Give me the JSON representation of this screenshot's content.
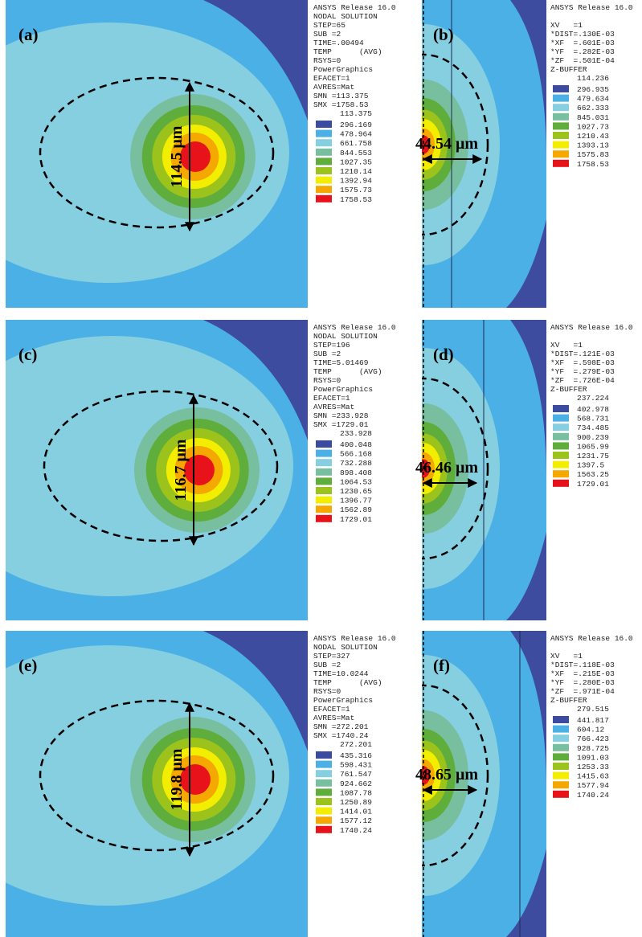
{
  "panels": [
    {
      "label": "(a)",
      "dimension": "114.5 μm",
      "info": [
        "ANSYS Release 16.0",
        "NODAL SOLUTION",
        "STEP=65",
        "SUB =2",
        "TIME=.00494",
        "TEMP      (AVG)",
        "RSYS=0",
        "PowerGraphics",
        "EFACET=1",
        "AVRES=Mat",
        "SMN =113.375",
        "SMX =1758.53"
      ],
      "legend": [
        "113.375",
        "296.169",
        "478.964",
        "661.758",
        "844.553",
        "1027.35",
        "1210.14",
        "1392.94",
        "1575.73",
        "1758.53"
      ]
    },
    {
      "label": "(b)",
      "dimension": "44.54 μm",
      "info": [
        "ANSYS Release 16.0",
        "XV   =1",
        "*DIST=.130E-03",
        "*XF  =.601E-03",
        "*YF  =.282E-03",
        "*ZF  =.501E-04",
        "Z-BUFFER"
      ],
      "legend": [
        "114.236",
        "296.935",
        "479.634",
        "662.333",
        "845.031",
        "1027.73",
        "1210.43",
        "1393.13",
        "1575.83",
        "1758.53"
      ]
    },
    {
      "label": "(c)",
      "dimension": "116.7 μm",
      "info": [
        "ANSYS Release 16.0",
        "NODAL SOLUTION",
        "STEP=196",
        "SUB =2",
        "TIME=5.01469",
        "TEMP      (AVG)",
        "RSYS=0",
        "PowerGraphics",
        "EFACET=1",
        "AVRES=Mat",
        "SMN =233.928",
        "SMX =1729.01"
      ],
      "legend": [
        "233.928",
        "400.048",
        "566.168",
        "732.288",
        "898.408",
        "1064.53",
        "1230.65",
        "1396.77",
        "1562.89",
        "1729.01"
      ]
    },
    {
      "label": "(d)",
      "dimension": "46.46 μm",
      "info": [
        "ANSYS Release 16.0",
        "XV   =1",
        "*DIST=.121E-03",
        "*XF  =.598E-03",
        "*YF  =.279E-03",
        "*ZF  =.726E-04",
        "Z-BUFFER"
      ],
      "legend": [
        "237.224",
        "402.978",
        "568.731",
        "734.485",
        "900.239",
        "1065.99",
        "1231.75",
        "1397.5",
        "1563.25",
        "1729.01"
      ]
    },
    {
      "label": "(e)",
      "dimension": "119.8 μm",
      "info": [
        "ANSYS Release 16.0",
        "NODAL SOLUTION",
        "STEP=327",
        "SUB =2",
        "TIME=10.0244",
        "TEMP      (AVG)",
        "RSYS=0",
        "PowerGraphics",
        "EFACET=1",
        "AVRES=Mat",
        "SMN =272.201",
        "SMX =1740.24"
      ],
      "legend": [
        "272.201",
        "435.316",
        "598.431",
        "761.547",
        "924.662",
        "1087.78",
        "1250.89",
        "1414.01",
        "1577.12",
        "1740.24"
      ]
    },
    {
      "label": "(f)",
      "dimension": "48.65 μm",
      "info": [
        "ANSYS Release 16.0",
        "XV   =1",
        "*DIST=.118E-03",
        "*XF  =.215E-03",
        "*YF  =.280E-03",
        "*ZF  =.971E-04",
        "Z-BUFFER"
      ],
      "legend": [
        "279.515",
        "441.817",
        "604.12",
        "766.423",
        "928.725",
        "1091.03",
        "1253.33",
        "1415.63",
        "1577.94",
        "1740.24"
      ]
    }
  ]
}
